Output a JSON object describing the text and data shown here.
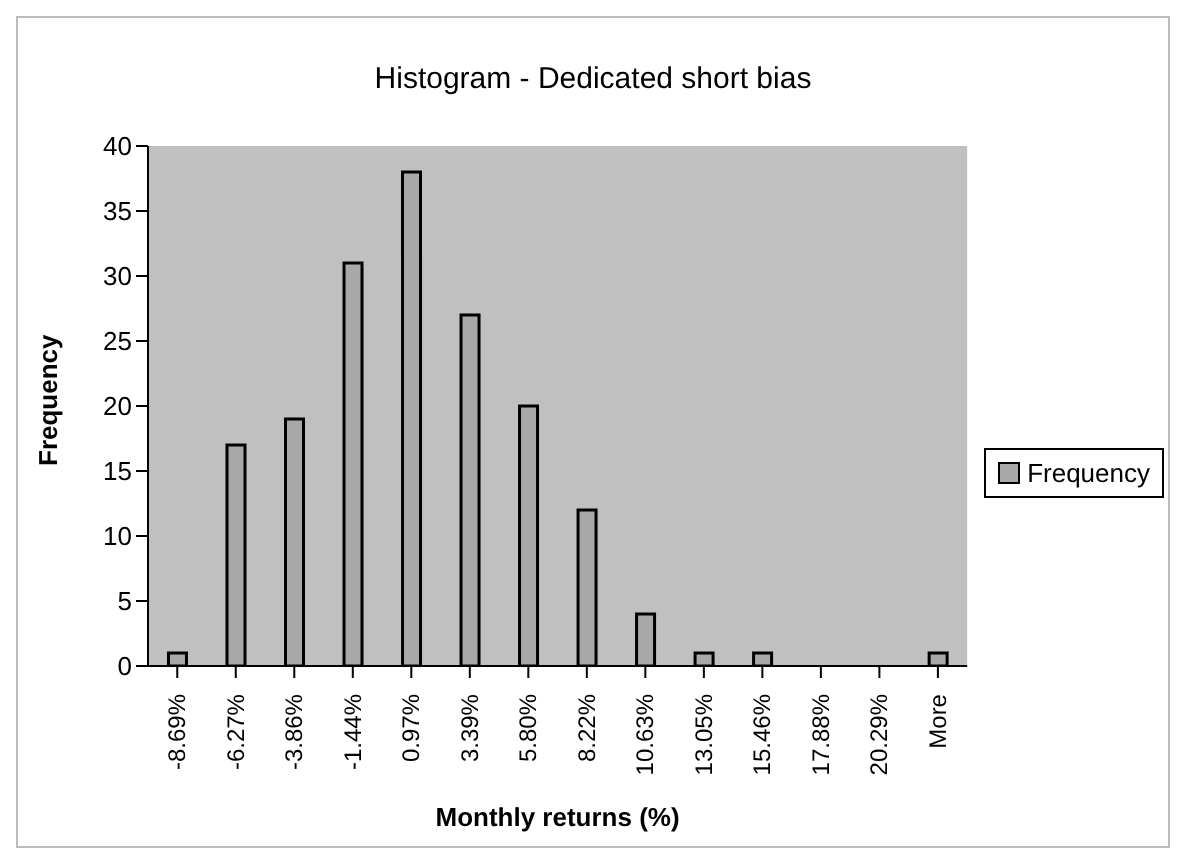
{
  "chart_data": {
    "type": "bar",
    "title": "Histogram - Dedicated short bias",
    "xlabel": "Monthly returns (%)",
    "ylabel": "Frequency",
    "categories": [
      "-8.69%",
      "-6.27%",
      "-3.86%",
      "-1.44%",
      "0.97%",
      "3.39%",
      "5.80%",
      "8.22%",
      "10.63%",
      "13.05%",
      "15.46%",
      "17.88%",
      "20.29%",
      "More"
    ],
    "series": [
      {
        "name": "Frequency",
        "color": "#a8a8a8",
        "values": [
          1,
          17,
          19,
          31,
          38,
          27,
          20,
          12,
          4,
          1,
          1,
          0,
          0,
          1
        ]
      }
    ],
    "ylim": [
      0,
      40
    ],
    "yticks": [
      0,
      5,
      10,
      15,
      20,
      25,
      30,
      35,
      40
    ],
    "grid": false,
    "legend": "right"
  }
}
